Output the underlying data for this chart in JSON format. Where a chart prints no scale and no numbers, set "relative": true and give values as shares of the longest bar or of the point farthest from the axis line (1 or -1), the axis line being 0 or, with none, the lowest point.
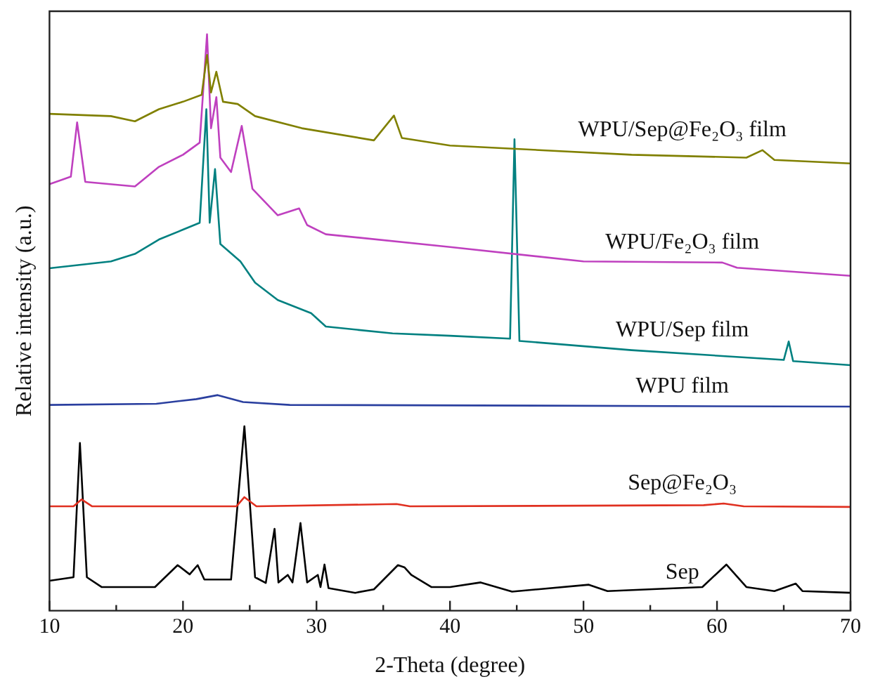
{
  "chart_data": {
    "type": "line",
    "relative": true,
    "xlabel": "2-Theta (degree)",
    "ylabel": "Relative intensity (a.u.)",
    "xlim": [
      10,
      70
    ],
    "xticks": [
      10,
      {
        "value": 15,
        "label": null
      },
      20,
      {
        "value": 25,
        "label": null
      },
      30,
      {
        "value": 35,
        "label": null
      },
      40,
      {
        "value": 45,
        "label": null
      },
      50,
      {
        "value": 55,
        "label": null
      },
      60,
      {
        "value": 65,
        "label": null
      },
      70
    ],
    "grid": false,
    "legend": false,
    "marker": "none",
    "line_style": "solid",
    "series": [
      {
        "name": "WPU/Sep@Fe₂O₃ film",
        "color": "#808000",
        "x": [
          10,
          14.6,
          16.4,
          18.2,
          20,
          21.4,
          21.8,
          22.1,
          22.5,
          23,
          24.1,
          25.4,
          28.9,
          34.3,
          35.8,
          36.4,
          40,
          53.6,
          62.2,
          63.4,
          64.3,
          70
        ],
        "values": [
          0.862,
          0.858,
          0.849,
          0.87,
          0.883,
          0.895,
          0.964,
          0.899,
          0.935,
          0.883,
          0.879,
          0.858,
          0.837,
          0.816,
          0.859,
          0.82,
          0.807,
          0.791,
          0.786,
          0.799,
          0.782,
          0.776
        ]
      },
      {
        "name": "WPU/Fe₂O₃ film",
        "color": "#bf40bf",
        "x": [
          10,
          11.6,
          12.07,
          12.68,
          16.4,
          18.2,
          20,
          21.25,
          21.8,
          22.1,
          22.5,
          22.8,
          23.6,
          24.4,
          25.2,
          27.1,
          28.7,
          29.3,
          30.7,
          40,
          50,
          60.4,
          61.5,
          70
        ],
        "values": [
          0.74,
          0.753,
          0.847,
          0.744,
          0.736,
          0.77,
          0.791,
          0.812,
          1.0,
          0.837,
          0.891,
          0.786,
          0.761,
          0.841,
          0.732,
          0.686,
          0.698,
          0.669,
          0.653,
          0.631,
          0.606,
          0.604,
          0.595,
          0.581
        ]
      },
      {
        "name": "WPU/Sep film",
        "color": "#008080",
        "x": [
          10,
          14.6,
          16.4,
          18.2,
          20,
          21.25,
          21.75,
          22.0,
          22.4,
          22.8,
          24.3,
          25.4,
          27.1,
          29.6,
          30.7,
          35.7,
          40,
          44.5,
          44.83,
          45.2,
          53.6,
          65.0,
          65.37,
          65.7,
          70
        ],
        "values": [
          0.594,
          0.606,
          0.619,
          0.644,
          0.661,
          0.673,
          0.87,
          0.673,
          0.766,
          0.636,
          0.606,
          0.569,
          0.539,
          0.516,
          0.493,
          0.481,
          0.477,
          0.472,
          0.818,
          0.468,
          0.452,
          0.435,
          0.467,
          0.433,
          0.426
        ]
      },
      {
        "name": "WPU film",
        "color": "#2a3f9f",
        "x": [
          10,
          18,
          21,
          22.6,
          24.5,
          28,
          70
        ],
        "values": [
          0.357,
          0.359,
          0.367,
          0.374,
          0.362,
          0.357,
          0.354
        ]
      },
      {
        "name": "Sep@Fe₂O₃",
        "color": "#e03020",
        "x": [
          10,
          11.8,
          12.4,
          13.2,
          24,
          24.6,
          25.5,
          36,
          37,
          59,
          60.5,
          62,
          70
        ],
        "values": [
          0.181,
          0.181,
          0.193,
          0.181,
          0.181,
          0.197,
          0.181,
          0.185,
          0.181,
          0.183,
          0.186,
          0.181,
          0.18
        ]
      },
      {
        "name": "Sep",
        "color": "#000000",
        "x": [
          10,
          11.8,
          12.28,
          12.8,
          13.9,
          17.9,
          19.6,
          20.5,
          21.1,
          21.6,
          23.6,
          24.6,
          25.4,
          26.2,
          26.86,
          27.15,
          27.85,
          28.2,
          28.8,
          29.3,
          30.1,
          30.3,
          30.6,
          30.9,
          32.9,
          34.3,
          36.1,
          36.6,
          37.1,
          38.6,
          40,
          42.3,
          44.65,
          50.4,
          51.8,
          58.9,
          60.7,
          62.2,
          64.3,
          65.9,
          66.4,
          70
        ],
        "values": [
          0.052,
          0.058,
          0.291,
          0.058,
          0.041,
          0.041,
          0.079,
          0.063,
          0.079,
          0.054,
          0.054,
          0.32,
          0.058,
          0.048,
          0.142,
          0.049,
          0.062,
          0.049,
          0.152,
          0.049,
          0.062,
          0.041,
          0.08,
          0.039,
          0.031,
          0.037,
          0.079,
          0.075,
          0.062,
          0.041,
          0.041,
          0.049,
          0.033,
          0.045,
          0.034,
          0.041,
          0.08,
          0.041,
          0.034,
          0.047,
          0.034,
          0.031
        ]
      }
    ]
  }
}
